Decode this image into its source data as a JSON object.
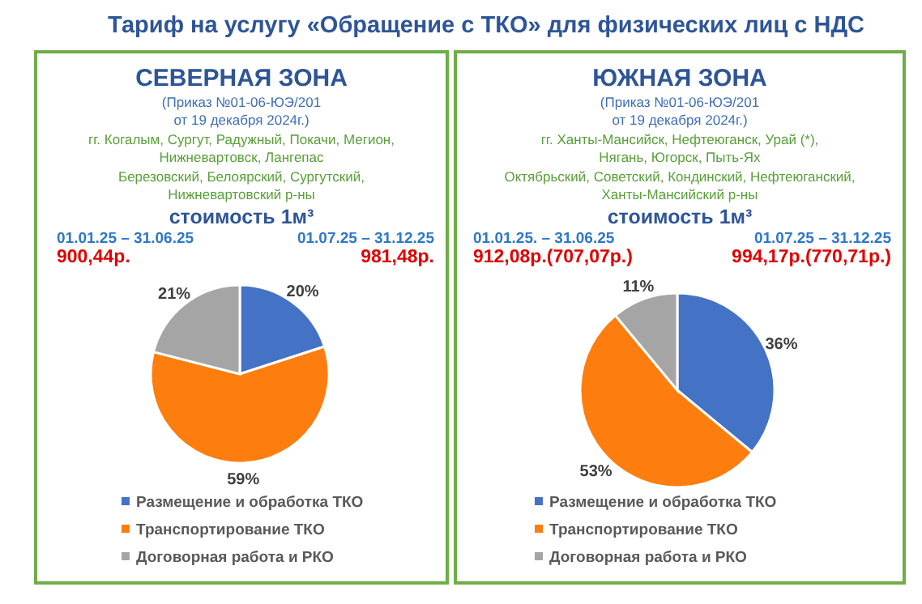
{
  "chart_data": [
    {
      "type": "pie",
      "title": "СЕВЕРНАЯ ЗОНА",
      "categories": [
        "Размещение и обработка ТКО",
        "Транспортирование ТКО",
        "Договорная работа и РКО"
      ],
      "values": [
        20,
        59,
        21
      ],
      "value_labels": [
        "20%",
        "59%",
        "21%"
      ],
      "colors": [
        "#4472c4",
        "#fd7e0e",
        "#a5a5a5"
      ],
      "legend": "bottom",
      "annotations": [
        "Тариф на услугу «Обращение с ТКО» для физических лиц с НДС",
        "(Приказ №01-06-ЮЭ/201",
        "от 19 декабря 2024г.)",
        "гг. Когалым, Сургут, Радужный, Покачи, Мегион,",
        "Нижневартовск, Лангепас",
        "Березовский, Белоярский, Сургутский,",
        "Нижневартовский р-ны",
        "стоимость 1м³",
        "01.01.25 – 31.06.25",
        "01.07.25 – 31.12.25",
        "900,44р.",
        "981,48р."
      ]
    },
    {
      "type": "pie",
      "title": "ЮЖНАЯ ЗОНА",
      "categories": [
        "Размещение и обработка ТКО",
        "Транспортирование ТКО",
        "Договорная работа и РКО"
      ],
      "values": [
        36,
        53,
        11
      ],
      "value_labels": [
        "36%",
        "53%",
        "11%"
      ],
      "colors": [
        "#4472c4",
        "#fd7e0e",
        "#a5a5a5"
      ],
      "legend": "bottom",
      "annotations": [
        "(Приказ №01-06-ЮЭ/201",
        "от 19 декабря 2024г.)",
        "гг. Ханты-Мансийск, Нефтеюганск, Урай (*),",
        "Нягань, Югорск, Пыть-Ях",
        "Октябрьский, Советский, Кондинский, Нефтеюганский,",
        "Ханты-Мансийский р-ны",
        "стоимость 1м³",
        "01.01.25. – 31.06.25",
        "01.07.25 – 31.12.25",
        "912,08р.(707,07р.)",
        "994,17р.(770,71р.)"
      ]
    }
  ]
}
